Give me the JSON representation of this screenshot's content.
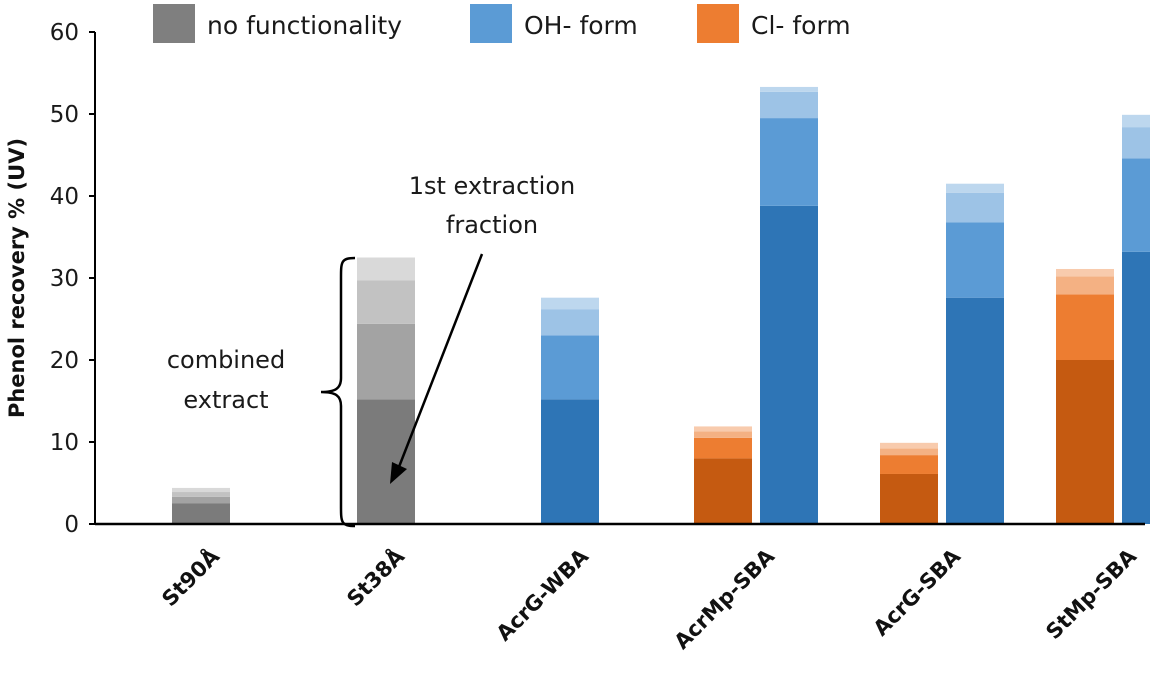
{
  "chart_data": {
    "type": "bar",
    "subtype": "stacked",
    "title": "",
    "xlabel": "",
    "ylabel": "Phenol recovery % (UV)",
    "ylim": [
      0,
      60
    ],
    "yticks": [
      0,
      10,
      20,
      30,
      40,
      50,
      60
    ],
    "grid": false,
    "legend_position": "top",
    "legend": [
      {
        "label": "no functionality",
        "color": "#7f7f7f"
      },
      {
        "label": "OH- form",
        "color": "#5b9bd5"
      },
      {
        "label": "Cl- form",
        "color": "#ed7d31"
      }
    ],
    "categories": [
      "St90Å",
      "St38Å",
      "AcrG-WBA",
      "AcrMp-SBA",
      "AcrG-SBA",
      "StMp-SBA"
    ],
    "bars": [
      {
        "category": "St90Å",
        "form": "no functionality",
        "segments": [
          2.5,
          0.8,
          0.6,
          0.5
        ]
      },
      {
        "category": "St38Å",
        "form": "no functionality",
        "segments": [
          15.2,
          9.2,
          5.3,
          2.8
        ]
      },
      {
        "category": "AcrG-WBA",
        "form": "OH- form",
        "segments": [
          15.2,
          7.8,
          3.2,
          1.4
        ]
      },
      {
        "category": "AcrMp-SBA",
        "form": "Cl- form",
        "segments": [
          8.0,
          2.5,
          0.8,
          0.6
        ]
      },
      {
        "category": "AcrMp-SBA",
        "form": "OH- form",
        "segments": [
          38.8,
          10.7,
          3.2,
          0.6
        ]
      },
      {
        "category": "AcrG-SBA",
        "form": "Cl- form",
        "segments": [
          6.1,
          2.3,
          0.8,
          0.7
        ]
      },
      {
        "category": "AcrG-SBA",
        "form": "OH- form",
        "segments": [
          27.6,
          9.2,
          3.6,
          1.1
        ]
      },
      {
        "category": "StMp-SBA",
        "form": "Cl- form",
        "segments": [
          20.0,
          8.0,
          2.2,
          0.9
        ]
      },
      {
        "category": "StMp-SBA",
        "form": "OH- form",
        "segments": [
          33.2,
          11.4,
          3.8,
          1.5
        ]
      }
    ],
    "segment_colors": {
      "no functionality": [
        "#7b7b7b",
        "#a3a3a3",
        "#c2c2c2",
        "#d9d9d9"
      ],
      "OH- form": [
        "#2e75b6",
        "#5b9bd5",
        "#9dc3e6",
        "#bdd7ee"
      ],
      "Cl- form": [
        "#c55a11",
        "#ed7d31",
        "#f4b183",
        "#f8cbad"
      ]
    },
    "annotations": {
      "combined_label": [
        "combined",
        "extract"
      ],
      "first_fraction_label": [
        "1st extraction",
        "fraction"
      ]
    }
  }
}
